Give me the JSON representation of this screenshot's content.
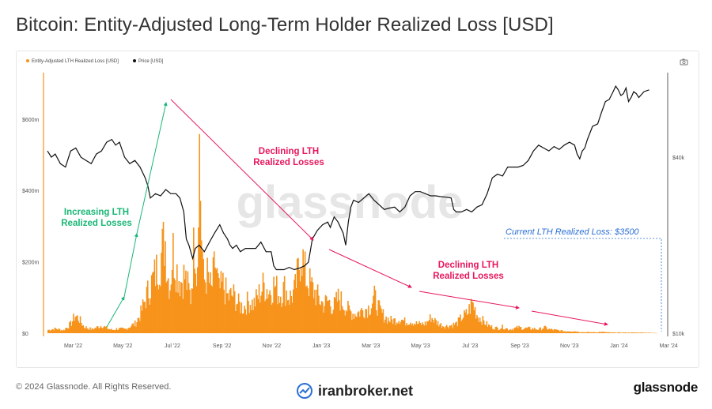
{
  "page": {
    "title": "Bitcoin: Entity-Adjusted Long-Term Holder Realized Loss [USD]",
    "copyright": "© 2024 Glassnode. All Rights Reserved.",
    "brand_logo": "glassnode",
    "broker_text": "iranbroker.net",
    "watermark": "glassnode",
    "camera_icon": "camera-icon"
  },
  "chart_data": {
    "type": "bar",
    "legend": [
      "Entity-Adjusted LTH Realized Loss [USD]",
      "Price [USD]"
    ],
    "colors": {
      "loss": "#f7931a",
      "price": "#111111",
      "green": "#19b776",
      "red": "#e8175d",
      "blue": "#2b6fd6"
    },
    "x_ticks": [
      "Mar '22",
      "May '22",
      "Jul '22",
      "Sep '22",
      "Nov '22",
      "Jan '23",
      "Mar '23",
      "May '23",
      "Jul '23",
      "Sep '23",
      "Nov '23",
      "Jan '24",
      "Mar '24"
    ],
    "y_left_ticks": [
      "$0",
      "$200m",
      "$400m",
      "$600m"
    ],
    "y_right_ticks": [
      "$10k",
      "$40k"
    ],
    "ylim_left_m": [
      0,
      730
    ],
    "series": [
      {
        "name": "Entity-Adjusted LTH Realized Loss [USD]",
        "unit": "USD millions",
        "points_month_value": [
          [
            0.0,
            10
          ],
          [
            0.3,
            14
          ],
          [
            0.6,
            9
          ],
          [
            0.9,
            30
          ],
          [
            1.05,
            55
          ],
          [
            1.2,
            45
          ],
          [
            1.4,
            20
          ],
          [
            1.7,
            12
          ],
          [
            1.9,
            18
          ],
          [
            2.1,
            25
          ],
          [
            2.3,
            15
          ],
          [
            2.5,
            10
          ],
          [
            2.7,
            14
          ],
          [
            3.0,
            12
          ],
          [
            3.2,
            22
          ],
          [
            3.4,
            30
          ],
          [
            3.6,
            60
          ],
          [
            3.8,
            110
          ],
          [
            4.0,
            150
          ],
          [
            4.2,
            190
          ],
          [
            4.4,
            240
          ],
          [
            4.55,
            300
          ],
          [
            4.65,
            180
          ],
          [
            4.75,
            150
          ],
          [
            4.85,
            260
          ],
          [
            5.0,
            200
          ],
          [
            5.15,
            160
          ],
          [
            5.3,
            180
          ],
          [
            5.45,
            140
          ],
          [
            5.55,
            110
          ],
          [
            5.65,
            240
          ],
          [
            5.72,
            320
          ],
          [
            5.8,
            140
          ],
          [
            5.87,
            650
          ],
          [
            5.95,
            350
          ],
          [
            6.05,
            160
          ],
          [
            6.2,
            180
          ],
          [
            6.35,
            130
          ],
          [
            6.5,
            220
          ],
          [
            6.65,
            130
          ],
          [
            6.8,
            150
          ],
          [
            7.0,
            110
          ],
          [
            7.2,
            120
          ],
          [
            7.4,
            90
          ],
          [
            7.6,
            80
          ],
          [
            7.8,
            100
          ],
          [
            8.0,
            90
          ],
          [
            8.2,
            120
          ],
          [
            8.4,
            150
          ],
          [
            8.6,
            130
          ],
          [
            8.8,
            150
          ],
          [
            9.0,
            120
          ],
          [
            9.2,
            140
          ],
          [
            9.4,
            110
          ],
          [
            9.6,
            130
          ],
          [
            9.75,
            200
          ],
          [
            9.85,
            270
          ],
          [
            9.95,
            200
          ],
          [
            10.05,
            170
          ],
          [
            10.2,
            150
          ],
          [
            10.35,
            130
          ],
          [
            10.5,
            110
          ],
          [
            10.7,
            90
          ],
          [
            10.9,
            100
          ],
          [
            11.1,
            80
          ],
          [
            11.3,
            110
          ],
          [
            11.5,
            90
          ],
          [
            11.7,
            70
          ],
          [
            11.9,
            60
          ],
          [
            12.1,
            65
          ],
          [
            12.3,
            75
          ],
          [
            12.5,
            80
          ],
          [
            12.7,
            110
          ],
          [
            12.9,
            70
          ],
          [
            13.1,
            50
          ],
          [
            13.3,
            40
          ],
          [
            13.5,
            40
          ],
          [
            13.7,
            45
          ],
          [
            13.9,
            35
          ],
          [
            14.1,
            38
          ],
          [
            14.3,
            30
          ],
          [
            14.5,
            28
          ],
          [
            14.7,
            30
          ],
          [
            14.9,
            50
          ],
          [
            15.1,
            35
          ],
          [
            15.3,
            25
          ],
          [
            15.5,
            22
          ],
          [
            15.7,
            25
          ],
          [
            15.9,
            30
          ],
          [
            16.1,
            50
          ],
          [
            16.3,
            60
          ],
          [
            16.5,
            95
          ],
          [
            16.7,
            55
          ],
          [
            16.9,
            40
          ],
          [
            17.1,
            25
          ],
          [
            17.3,
            18
          ],
          [
            17.5,
            15
          ],
          [
            17.7,
            20
          ],
          [
            17.9,
            12
          ],
          [
            18.1,
            14
          ],
          [
            18.3,
            18
          ],
          [
            18.5,
            15
          ],
          [
            18.7,
            15
          ],
          [
            18.9,
            14
          ],
          [
            19.1,
            12
          ],
          [
            19.3,
            18
          ],
          [
            19.5,
            12
          ],
          [
            19.7,
            10
          ],
          [
            19.9,
            8
          ],
          [
            20.1,
            6
          ],
          [
            20.3,
            7
          ],
          [
            20.5,
            6
          ],
          [
            20.7,
            4
          ],
          [
            20.9,
            3
          ],
          [
            21.1,
            3
          ],
          [
            21.3,
            3
          ],
          [
            21.5,
            4
          ],
          [
            21.7,
            3
          ],
          [
            21.9,
            2
          ],
          [
            22.1,
            2
          ],
          [
            22.3,
            2
          ],
          [
            22.5,
            2
          ],
          [
            22.7,
            2
          ],
          [
            22.9,
            2
          ],
          [
            23.1,
            2
          ],
          [
            23.3,
            1.5
          ],
          [
            23.5,
            1
          ],
          [
            23.7,
            0.5
          ]
        ]
      },
      {
        "name": "Price [USD]",
        "unit": "USD thousands",
        "points_month_value": [
          [
            0.0,
            42
          ],
          [
            0.15,
            40
          ],
          [
            0.3,
            41
          ],
          [
            0.5,
            38
          ],
          [
            0.7,
            37
          ],
          [
            0.9,
            42
          ],
          [
            1.1,
            43
          ],
          [
            1.3,
            40
          ],
          [
            1.5,
            39
          ],
          [
            1.7,
            38
          ],
          [
            1.9,
            41
          ],
          [
            2.1,
            42
          ],
          [
            2.3,
            45
          ],
          [
            2.5,
            46
          ],
          [
            2.65,
            44
          ],
          [
            2.8,
            45
          ],
          [
            3.0,
            40
          ],
          [
            3.2,
            38
          ],
          [
            3.4,
            39
          ],
          [
            3.6,
            37
          ],
          [
            3.8,
            34
          ],
          [
            3.9,
            32
          ],
          [
            4.0,
            29
          ],
          [
            4.2,
            30
          ],
          [
            4.4,
            29.5
          ],
          [
            4.6,
            31
          ],
          [
            4.8,
            30
          ],
          [
            5.0,
            30
          ],
          [
            5.15,
            29
          ],
          [
            5.3,
            26
          ],
          [
            5.4,
            21
          ],
          [
            5.5,
            20
          ],
          [
            5.65,
            18
          ],
          [
            5.75,
            19.5
          ],
          [
            5.9,
            20
          ],
          [
            6.1,
            19
          ],
          [
            6.3,
            20.5
          ],
          [
            6.5,
            22
          ],
          [
            6.7,
            23.5
          ],
          [
            6.85,
            22
          ],
          [
            7.0,
            21
          ],
          [
            7.1,
            20
          ],
          [
            7.2,
            19.5
          ],
          [
            7.35,
            20
          ],
          [
            7.5,
            19
          ],
          [
            7.7,
            19.5
          ],
          [
            7.9,
            19.5
          ],
          [
            8.1,
            19.5
          ],
          [
            8.3,
            20.5
          ],
          [
            8.5,
            19
          ],
          [
            8.7,
            19
          ],
          [
            8.8,
            17
          ],
          [
            8.9,
            16.5
          ],
          [
            9.0,
            16.5
          ],
          [
            9.2,
            16.5
          ],
          [
            9.4,
            16.8
          ],
          [
            9.6,
            16.5
          ],
          [
            9.8,
            16.7
          ],
          [
            10.0,
            17
          ],
          [
            10.15,
            17.5
          ],
          [
            10.3,
            21
          ],
          [
            10.5,
            22.5
          ],
          [
            10.7,
            23.5
          ],
          [
            10.9,
            24
          ],
          [
            11.0,
            23
          ],
          [
            11.15,
            25
          ],
          [
            11.3,
            24
          ],
          [
            11.5,
            22
          ],
          [
            11.6,
            20
          ],
          [
            11.7,
            24
          ],
          [
            11.8,
            27
          ],
          [
            11.9,
            28.5
          ],
          [
            12.1,
            28
          ],
          [
            12.3,
            29
          ],
          [
            12.5,
            30
          ],
          [
            12.7,
            28.5
          ],
          [
            12.9,
            27.5
          ],
          [
            13.1,
            26.5
          ],
          [
            13.3,
            26.8
          ],
          [
            13.5,
            27
          ],
          [
            13.7,
            26
          ],
          [
            13.9,
            27
          ],
          [
            14.1,
            29.5
          ],
          [
            14.3,
            30.5
          ],
          [
            14.5,
            30.5
          ],
          [
            14.7,
            30
          ],
          [
            14.9,
            29.5
          ],
          [
            15.1,
            29.5
          ],
          [
            15.3,
            29.3
          ],
          [
            15.5,
            29.2
          ],
          [
            15.7,
            29
          ],
          [
            15.8,
            26.5
          ],
          [
            15.9,
            26
          ],
          [
            16.1,
            26
          ],
          [
            16.3,
            26.5
          ],
          [
            16.5,
            26
          ],
          [
            16.7,
            27
          ],
          [
            16.9,
            27.5
          ],
          [
            17.1,
            30
          ],
          [
            17.3,
            34
          ],
          [
            17.5,
            35
          ],
          [
            17.7,
            34.5
          ],
          [
            17.9,
            37
          ],
          [
            18.1,
            37
          ],
          [
            18.3,
            37
          ],
          [
            18.5,
            37.5
          ],
          [
            18.7,
            39
          ],
          [
            18.9,
            42
          ],
          [
            19.1,
            44
          ],
          [
            19.3,
            43
          ],
          [
            19.5,
            42
          ],
          [
            19.7,
            43.5
          ],
          [
            19.9,
            42.5
          ],
          [
            20.1,
            44
          ],
          [
            20.3,
            45
          ],
          [
            20.5,
            44
          ],
          [
            20.6,
            41
          ],
          [
            20.7,
            39.5
          ],
          [
            20.8,
            42
          ],
          [
            20.9,
            43
          ],
          [
            21.0,
            46
          ],
          [
            21.2,
            51
          ],
          [
            21.4,
            52
          ],
          [
            21.55,
            57
          ],
          [
            21.7,
            62
          ],
          [
            21.85,
            63
          ],
          [
            22.0,
            67
          ],
          [
            22.1,
            70
          ],
          [
            22.2,
            68
          ],
          [
            22.3,
            65
          ],
          [
            22.4,
            66
          ],
          [
            22.5,
            69
          ],
          [
            22.6,
            62
          ],
          [
            22.7,
            64
          ],
          [
            22.8,
            67
          ],
          [
            22.9,
            66
          ],
          [
            23.0,
            64
          ],
          [
            23.2,
            67
          ],
          [
            23.4,
            68
          ]
        ]
      }
    ],
    "annotations": {
      "increasing": "Increasing LTH\nRealized Losses",
      "declining_1": "Declining LTH\nRealized Losses",
      "declining_2": "Declining LTH\nRealized Losses",
      "current": "Current LTH Realized Loss: $3500"
    }
  }
}
